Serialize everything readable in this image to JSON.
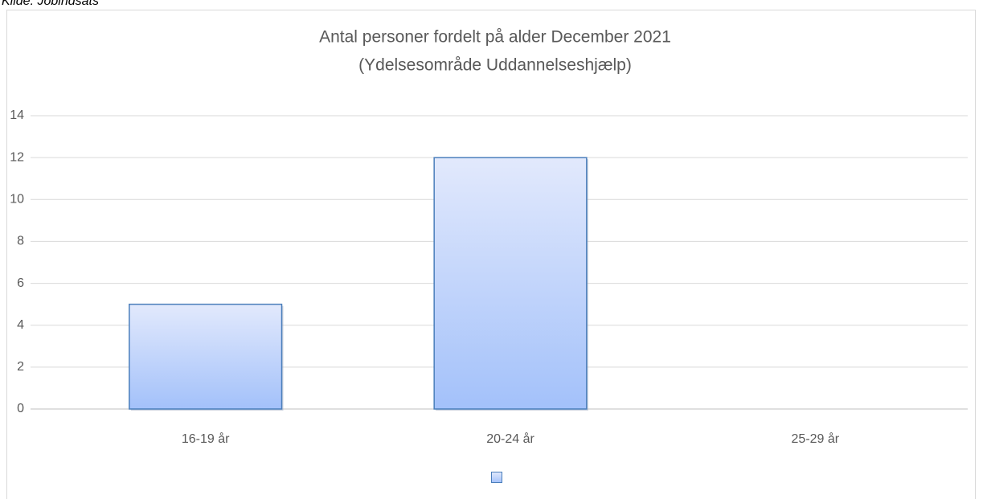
{
  "source": "Kilde: Jobindsats",
  "chart_data": {
    "type": "bar",
    "title": "Antal personer fordelt på alder December 2021",
    "subtitle": "(Ydelsesområde Uddannelseshjælp)",
    "categories": [
      "16-19 år",
      "20-24 år",
      "25-29 år"
    ],
    "values": [
      5,
      12,
      0
    ],
    "color": "#a3c1fa",
    "ylim": [
      0,
      14
    ],
    "yticks": [
      0,
      2,
      4,
      6,
      8,
      10,
      12,
      14
    ],
    "grid": true
  }
}
